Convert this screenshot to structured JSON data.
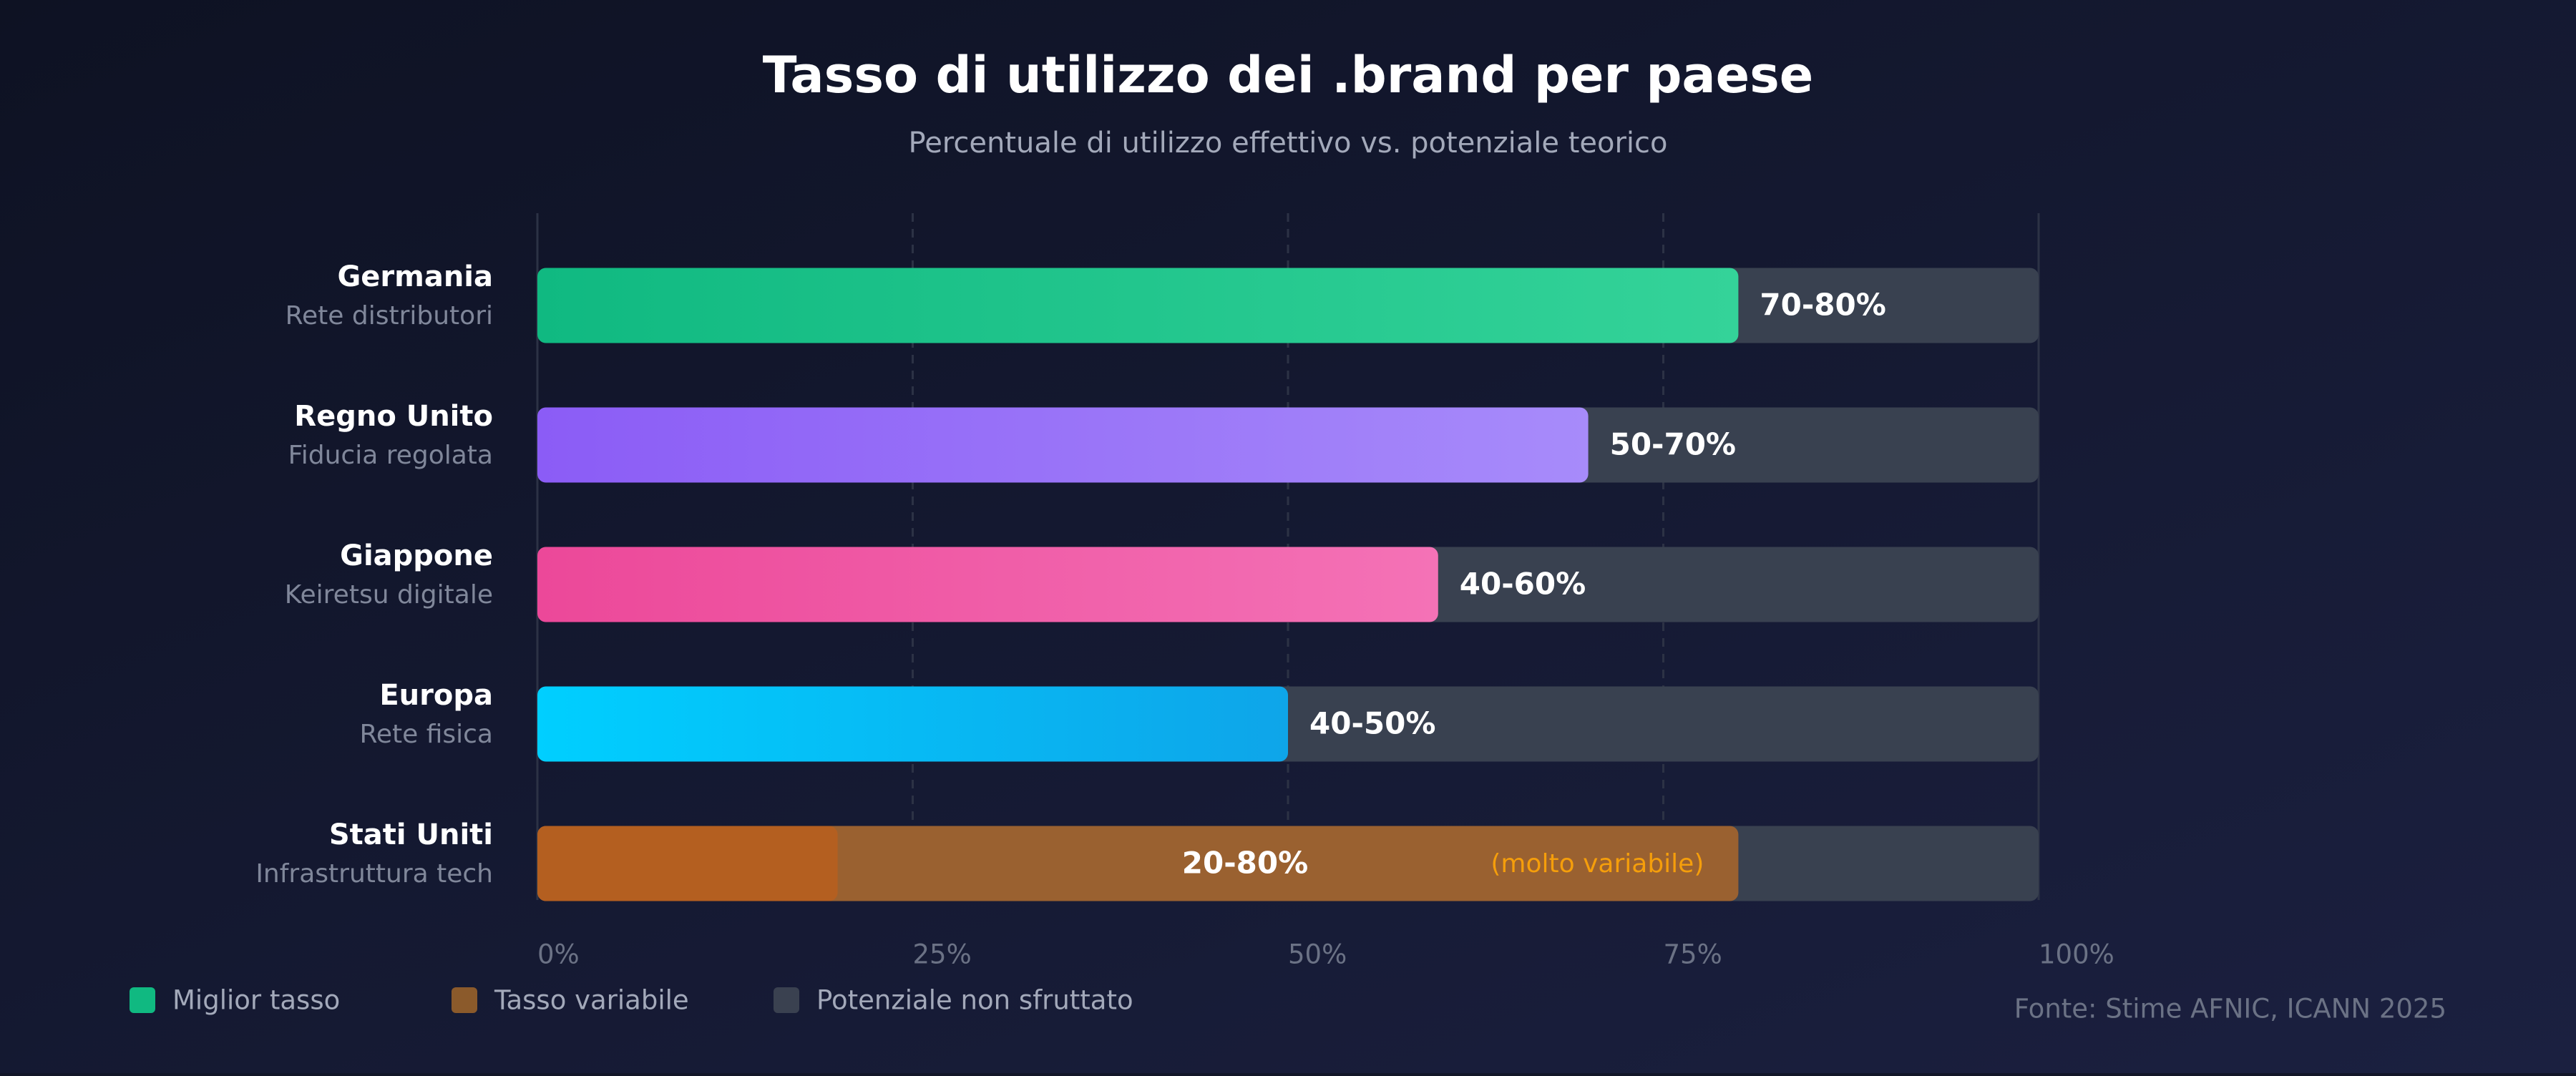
{
  "chart_data": {
    "type": "range-bar",
    "title": "Tasso di utilizzo dei .brand per paese",
    "subtitle": "Percentuale di utilizzo effettivo vs. potenziale teorico",
    "categories": [
      "Germania",
      "Regno Unito",
      "Giappone",
      "Europa",
      "Stati Uniti"
    ],
    "category_subtitles": [
      "Rete distributori",
      "Fiducia regolata",
      "Keiretsu digitale",
      "Rete fisica",
      "Infrastruttura tech"
    ],
    "values": [
      80,
      70,
      60,
      50,
      80
    ],
    "value_labels": [
      "70-80%",
      "50-70%",
      "40-60%",
      "40-50%",
      "20-80%"
    ],
    "lows": [
      null,
      null,
      null,
      null,
      20
    ],
    "colors": [
      [
        "#10b981",
        "#34d399"
      ],
      [
        "#8b5cf6",
        "#a78bfa"
      ],
      [
        "#ec4899",
        "#f472b6"
      ],
      [
        "#00cfff",
        "#0ea5e9"
      ],
      [
        "#9a6130",
        "#9a6130"
      ]
    ],
    "low_color": "#b45f20",
    "track_color": "#394150",
    "annotation": "(molto variabile)",
    "xlim": [
      0,
      100
    ],
    "xticks": [
      {
        "value": 0,
        "label": "0%"
      },
      {
        "value": 25,
        "label": "25%"
      },
      {
        "value": 50,
        "label": "50%"
      },
      {
        "value": 75,
        "label": "75%"
      },
      {
        "value": 100,
        "label": "100%"
      }
    ],
    "grid": true,
    "legend": [
      {
        "name": "Miglior tasso",
        "color": "#10b981"
      },
      {
        "name": "Tasso variabile",
        "color": "#8b5a2b"
      },
      {
        "name": "Potenziale non sfruttato",
        "color": "#3a4150"
      }
    ],
    "source": "Fonte: Stime AFNIC, ICANN 2025"
  }
}
